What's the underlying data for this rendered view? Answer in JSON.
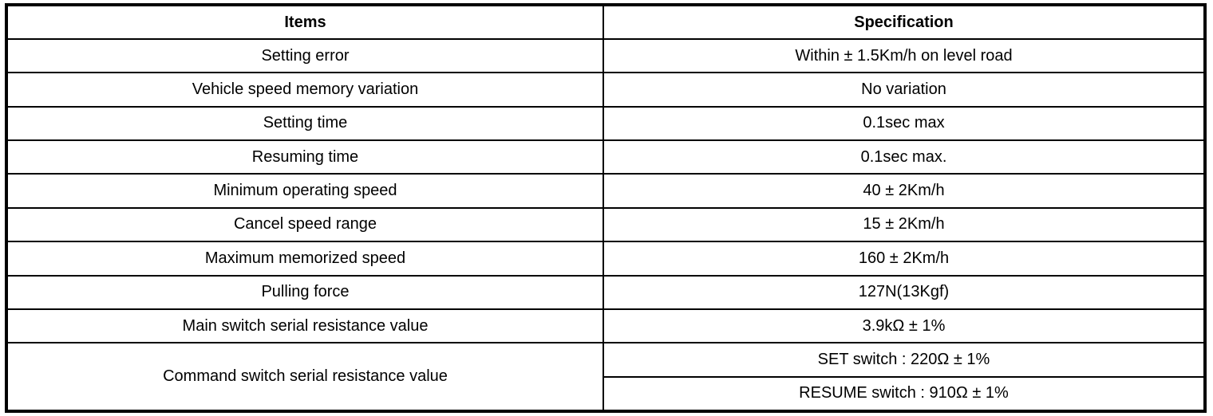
{
  "table": {
    "headers": [
      "Items",
      "Specification"
    ],
    "rows": [
      {
        "item": "Setting error",
        "spec": "Within ± 1.5Km/h on level road"
      },
      {
        "item": "Vehicle speed memory variation",
        "spec": "No variation"
      },
      {
        "item": "Setting time",
        "spec": "0.1sec max"
      },
      {
        "item": "Resuming time",
        "spec": "0.1sec max."
      },
      {
        "item": "Minimum operating speed",
        "spec": "40 ± 2Km/h"
      },
      {
        "item": "Cancel speed range",
        "spec": "15 ± 2Km/h"
      },
      {
        "item": "Maximum memorized speed",
        "spec": "160 ± 2Km/h"
      },
      {
        "item": "Pulling force",
        "spec": "127N(13Kgf)"
      },
      {
        "item": "Main switch serial resistance value",
        "spec": "3.9kΩ ± 1%"
      }
    ],
    "command_row": {
      "item": "Command switch serial resistance value",
      "specs": [
        "SET switch : 220Ω ± 1%",
        "RESUME switch : 910Ω ± 1%"
      ]
    }
  }
}
